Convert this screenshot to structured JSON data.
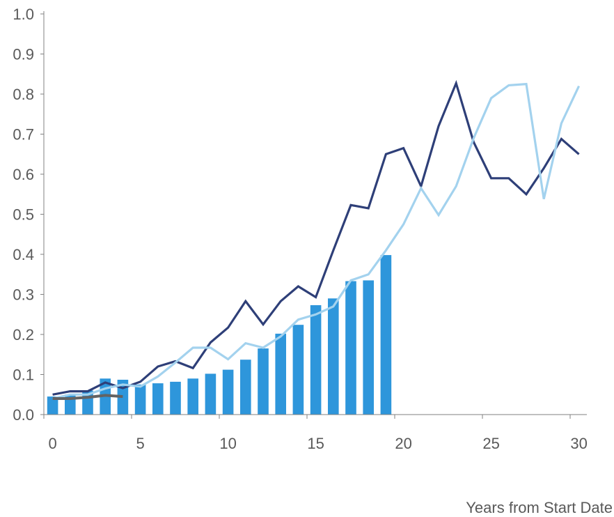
{
  "chart_data": {
    "type": "bar+line",
    "title": "",
    "xlabel": "Years from Start Date",
    "ylabel": "",
    "xlim": [
      0,
      30
    ],
    "ylim": [
      0,
      1
    ],
    "x_ticks": [
      0,
      5,
      10,
      15,
      20,
      25,
      30
    ],
    "y_ticks": [
      0.0,
      0.1,
      0.2,
      0.3,
      0.4,
      0.5,
      0.6,
      0.7,
      0.8,
      0.9,
      1.0
    ],
    "y_tick_labels": [
      "0.0",
      "0.1",
      "0.2",
      "0.3",
      "0.4",
      "0.5",
      "0.6",
      "0.7",
      "0.8",
      "0.9",
      "1.0"
    ],
    "grid": false,
    "legend": "none",
    "bars": {
      "color": "#2E96DB",
      "x": [
        0,
        1,
        2,
        3,
        4,
        5,
        6,
        7,
        8,
        9,
        10,
        11,
        12,
        13,
        14,
        15,
        16,
        17,
        18,
        19
      ],
      "values": [
        0.045,
        0.05,
        0.06,
        0.09,
        0.087,
        0.075,
        0.078,
        0.082,
        0.09,
        0.102,
        0.112,
        0.137,
        0.165,
        0.202,
        0.224,
        0.273,
        0.29,
        0.333,
        0.335,
        0.398
      ]
    },
    "series": [
      {
        "type": "line",
        "color": "#2E3F78",
        "x": [
          0,
          1,
          2,
          3,
          4,
          5,
          6,
          7,
          8,
          9,
          10,
          11,
          12,
          13,
          14,
          15,
          16,
          17,
          18,
          19,
          20,
          21,
          22,
          23,
          24,
          25,
          26,
          27,
          28,
          29,
          30
        ],
        "values": [
          0.05,
          0.058,
          0.058,
          0.08,
          0.066,
          0.082,
          0.12,
          0.133,
          0.116,
          0.18,
          0.217,
          0.283,
          0.225,
          0.283,
          0.32,
          0.293,
          0.41,
          0.523,
          0.515,
          0.65,
          0.665,
          0.57,
          0.72,
          0.827,
          0.68,
          0.59,
          0.59,
          0.55,
          0.615,
          0.688,
          0.65
        ]
      },
      {
        "type": "line",
        "color": "#A3D2EE",
        "x": [
          0,
          1,
          2,
          3,
          4,
          5,
          6,
          7,
          8,
          9,
          10,
          11,
          12,
          13,
          14,
          15,
          16,
          17,
          18,
          19,
          20,
          21,
          22,
          23,
          24,
          25,
          26,
          27,
          28,
          29,
          30
        ],
        "values": [
          0.04,
          0.05,
          0.05,
          0.065,
          0.075,
          0.07,
          0.095,
          0.13,
          0.167,
          0.167,
          0.138,
          0.178,
          0.167,
          0.195,
          0.237,
          0.25,
          0.27,
          0.335,
          0.35,
          0.41,
          0.475,
          0.565,
          0.498,
          0.57,
          0.69,
          0.79,
          0.822,
          0.825,
          0.538,
          0.727,
          0.82
        ]
      },
      {
        "type": "line",
        "color": "#636363",
        "x": [
          0,
          1,
          2,
          3,
          4
        ],
        "values": [
          0.04,
          0.04,
          0.043,
          0.048,
          0.045
        ]
      }
    ]
  }
}
